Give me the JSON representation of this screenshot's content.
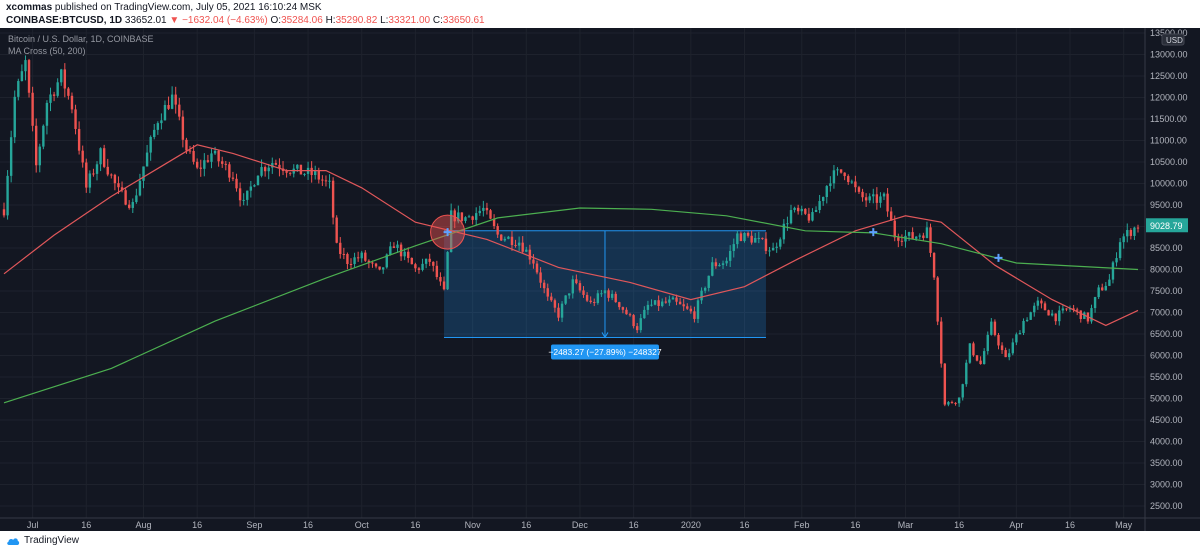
{
  "header": {
    "publisher": "xcommas",
    "published_text": "published on TradingView.com, July 05, 2021 16:10:24 MSK",
    "symbol": "COINBASE:BTCUSD, 1D",
    "last": "33652.01",
    "change": "−1632.04 (−4.63%)",
    "change_arrow": "▼",
    "open_label": "O:",
    "open": "35284.06",
    "high_label": "H:",
    "high": "35290.82",
    "low_label": "L:",
    "low": "33321.00",
    "close_label": "C:",
    "close": "33650.61"
  },
  "legend": {
    "title": "Bitcoin / U.S. Dollar, 1D, COINBASE",
    "indicator": "MA Cross (50, 200)"
  },
  "footer": {
    "brand": "TradingView"
  },
  "colors": {
    "background": "#131722",
    "up": "#26a69a",
    "down": "#ef5350",
    "ma_fast": "#e0575a",
    "ma_slow": "#4caf50",
    "measure": "#2196f3",
    "cross_marker": "#5ea1ff",
    "price_label": "#26a69a"
  },
  "chart_data": {
    "type": "candlestick",
    "x_axis": {
      "start_date": "2019-06-23",
      "end_date": "2020-05-05",
      "tick_labels": [
        {
          "date": "2019-07-01",
          "label": "Jul"
        },
        {
          "date": "2019-07-16",
          "label": "16"
        },
        {
          "date": "2019-08-01",
          "label": "Aug"
        },
        {
          "date": "2019-08-16",
          "label": "16"
        },
        {
          "date": "2019-09-01",
          "label": "Sep"
        },
        {
          "date": "2019-09-16",
          "label": "16"
        },
        {
          "date": "2019-10-01",
          "label": "Oct"
        },
        {
          "date": "2019-10-16",
          "label": "16"
        },
        {
          "date": "2019-11-01",
          "label": "Nov"
        },
        {
          "date": "2019-11-16",
          "label": "16"
        },
        {
          "date": "2019-12-01",
          "label": "Dec"
        },
        {
          "date": "2019-12-16",
          "label": "16"
        },
        {
          "date": "2020-01-01",
          "label": "2020"
        },
        {
          "date": "2020-01-16",
          "label": "16"
        },
        {
          "date": "2020-02-01",
          "label": "Feb"
        },
        {
          "date": "2020-02-16",
          "label": "16"
        },
        {
          "date": "2020-03-01",
          "label": "Mar"
        },
        {
          "date": "2020-03-16",
          "label": "16"
        },
        {
          "date": "2020-04-01",
          "label": "Apr"
        },
        {
          "date": "2020-04-16",
          "label": "16"
        },
        {
          "date": "2020-05-01",
          "label": "May"
        }
      ]
    },
    "y_axis": {
      "range": [
        2500,
        13500
      ],
      "currency": "USD",
      "tick_labels": [
        "13500.00",
        "13000.00",
        "12500.00",
        "12000.00",
        "11500.00",
        "11000.00",
        "10500.00",
        "10000.00",
        "9500.00",
        "9000.00",
        "8500.00",
        "8000.00",
        "7500.00",
        "7000.00",
        "6500.00",
        "6000.00",
        "5500.00",
        "5000.00",
        "4500.00",
        "4000.00",
        "3500.00",
        "3000.00",
        "2500.00"
      ]
    },
    "last_price_label": "9028.79",
    "price_anchors": [
      {
        "date": "2019-06-23",
        "close": 9400
      },
      {
        "date": "2019-06-26",
        "close": 12000
      },
      {
        "date": "2019-06-29",
        "close": 12800
      },
      {
        "date": "2019-07-02",
        "close": 10400
      },
      {
        "date": "2019-07-05",
        "close": 11900
      },
      {
        "date": "2019-07-09",
        "close": 12500
      },
      {
        "date": "2019-07-12",
        "close": 11800
      },
      {
        "date": "2019-07-16",
        "close": 9900
      },
      {
        "date": "2019-07-20",
        "close": 10700
      },
      {
        "date": "2019-07-25",
        "close": 9800
      },
      {
        "date": "2019-07-29",
        "close": 9500
      },
      {
        "date": "2019-08-01",
        "close": 10400
      },
      {
        "date": "2019-08-05",
        "close": 11500
      },
      {
        "date": "2019-08-09",
        "close": 12000
      },
      {
        "date": "2019-08-13",
        "close": 10800
      },
      {
        "date": "2019-08-16",
        "close": 10300
      },
      {
        "date": "2019-08-20",
        "close": 10700
      },
      {
        "date": "2019-08-26",
        "close": 10200
      },
      {
        "date": "2019-08-29",
        "close": 9500
      },
      {
        "date": "2019-09-02",
        "close": 10300
      },
      {
        "date": "2019-09-06",
        "close": 10500
      },
      {
        "date": "2019-09-12",
        "close": 10300
      },
      {
        "date": "2019-09-18",
        "close": 10200
      },
      {
        "date": "2019-09-22",
        "close": 9950
      },
      {
        "date": "2019-09-24",
        "close": 8500
      },
      {
        "date": "2019-09-27",
        "close": 8200
      },
      {
        "date": "2019-10-01",
        "close": 8300
      },
      {
        "date": "2019-10-06",
        "close": 7900
      },
      {
        "date": "2019-10-10",
        "close": 8600
      },
      {
        "date": "2019-10-16",
        "close": 8000
      },
      {
        "date": "2019-10-20",
        "close": 8200
      },
      {
        "date": "2019-10-24",
        "close": 7450
      },
      {
        "date": "2019-10-26",
        "close": 9250
      },
      {
        "date": "2019-10-30",
        "close": 9200
      },
      {
        "date": "2019-11-04",
        "close": 9400
      },
      {
        "date": "2019-11-08",
        "close": 8800
      },
      {
        "date": "2019-11-14",
        "close": 8650
      },
      {
        "date": "2019-11-18",
        "close": 8200
      },
      {
        "date": "2019-11-22",
        "close": 7300
      },
      {
        "date": "2019-11-25",
        "close": 6950
      },
      {
        "date": "2019-11-29",
        "close": 7700
      },
      {
        "date": "2019-12-04",
        "close": 7200
      },
      {
        "date": "2019-12-08",
        "close": 7500
      },
      {
        "date": "2019-12-12",
        "close": 7200
      },
      {
        "date": "2019-12-17",
        "close": 6650
      },
      {
        "date": "2019-12-20",
        "close": 7150
      },
      {
        "date": "2019-12-27",
        "close": 7250
      },
      {
        "date": "2020-01-02",
        "close": 6950
      },
      {
        "date": "2020-01-07",
        "close": 8100
      },
      {
        "date": "2020-01-11",
        "close": 8200
      },
      {
        "date": "2020-01-14",
        "close": 8800
      },
      {
        "date": "2020-01-19",
        "close": 8700
      },
      {
        "date": "2020-01-24",
        "close": 8450
      },
      {
        "date": "2020-01-29",
        "close": 9350
      },
      {
        "date": "2020-02-04",
        "close": 9200
      },
      {
        "date": "2020-02-09",
        "close": 10150
      },
      {
        "date": "2020-02-13",
        "close": 10300
      },
      {
        "date": "2020-02-17",
        "close": 9700
      },
      {
        "date": "2020-02-20",
        "close": 9600
      },
      {
        "date": "2020-02-24",
        "close": 9650
      },
      {
        "date": "2020-02-27",
        "close": 8800
      },
      {
        "date": "2020-03-03",
        "close": 8750
      },
      {
        "date": "2020-03-07",
        "close": 8900
      },
      {
        "date": "2020-03-09",
        "close": 7900
      },
      {
        "date": "2020-03-12",
        "close": 4850
      },
      {
        "date": "2020-03-16",
        "close": 5000
      },
      {
        "date": "2020-03-19",
        "close": 6200
      },
      {
        "date": "2020-03-22",
        "close": 5800
      },
      {
        "date": "2020-03-25",
        "close": 6700
      },
      {
        "date": "2020-03-29",
        "close": 5900
      },
      {
        "date": "2020-04-03",
        "close": 6800
      },
      {
        "date": "2020-04-07",
        "close": 7200
      },
      {
        "date": "2020-04-12",
        "close": 6900
      },
      {
        "date": "2020-04-16",
        "close": 7100
      },
      {
        "date": "2020-04-21",
        "close": 6850
      },
      {
        "date": "2020-04-24",
        "close": 7500
      },
      {
        "date": "2020-04-27",
        "close": 7750
      },
      {
        "date": "2020-04-30",
        "close": 8700
      },
      {
        "date": "2020-05-03",
        "close": 8900
      },
      {
        "date": "2020-05-05",
        "close": 9030
      }
    ],
    "series": [
      {
        "name": "MA 50",
        "color": "#e0575a",
        "points": [
          {
            "date": "2019-06-23",
            "y": 7900
          },
          {
            "date": "2019-07-07",
            "y": 8800
          },
          {
            "date": "2019-07-23",
            "y": 9700
          },
          {
            "date": "2019-08-06",
            "y": 10400
          },
          {
            "date": "2019-08-16",
            "y": 10900
          },
          {
            "date": "2019-08-26",
            "y": 10700
          },
          {
            "date": "2019-09-10",
            "y": 10300
          },
          {
            "date": "2019-09-21",
            "y": 10300
          },
          {
            "date": "2019-10-01",
            "y": 9900
          },
          {
            "date": "2019-10-16",
            "y": 9100
          },
          {
            "date": "2019-11-05",
            "y": 8700
          },
          {
            "date": "2019-11-25",
            "y": 8050
          },
          {
            "date": "2019-12-15",
            "y": 7700
          },
          {
            "date": "2020-01-01",
            "y": 7300
          },
          {
            "date": "2020-01-16",
            "y": 7600
          },
          {
            "date": "2020-01-31",
            "y": 8250
          },
          {
            "date": "2020-02-16",
            "y": 8900
          },
          {
            "date": "2020-03-01",
            "y": 9250
          },
          {
            "date": "2020-03-11",
            "y": 9100
          },
          {
            "date": "2020-03-26",
            "y": 8100
          },
          {
            "date": "2020-04-11",
            "y": 7300
          },
          {
            "date": "2020-04-26",
            "y": 6700
          },
          {
            "date": "2020-05-05",
            "y": 7050
          }
        ]
      },
      {
        "name": "MA 200",
        "color": "#4caf50",
        "points": [
          {
            "date": "2019-06-23",
            "y": 4900
          },
          {
            "date": "2019-07-23",
            "y": 5700
          },
          {
            "date": "2019-08-21",
            "y": 6800
          },
          {
            "date": "2019-09-21",
            "y": 7800
          },
          {
            "date": "2019-10-16",
            "y": 8550
          },
          {
            "date": "2019-11-08",
            "y": 9200
          },
          {
            "date": "2019-12-01",
            "y": 9430
          },
          {
            "date": "2019-12-21",
            "y": 9400
          },
          {
            "date": "2020-01-11",
            "y": 9250
          },
          {
            "date": "2020-02-02",
            "y": 8900
          },
          {
            "date": "2020-02-21",
            "y": 8850
          },
          {
            "date": "2020-03-11",
            "y": 8600
          },
          {
            "date": "2020-04-01",
            "y": 8150
          },
          {
            "date": "2020-05-05",
            "y": 8000
          }
        ]
      }
    ],
    "cross_markers": [
      {
        "date": "2019-10-25",
        "y": 8870
      },
      {
        "date": "2020-02-21",
        "y": 8870
      },
      {
        "date": "2020-03-27",
        "y": 8270
      }
    ],
    "measure": {
      "start_date": "2019-10-24",
      "end_date": "2020-01-22",
      "top": 8900,
      "bottom": 6420,
      "label": "−2483.27 (−27.89%) −248327"
    }
  }
}
